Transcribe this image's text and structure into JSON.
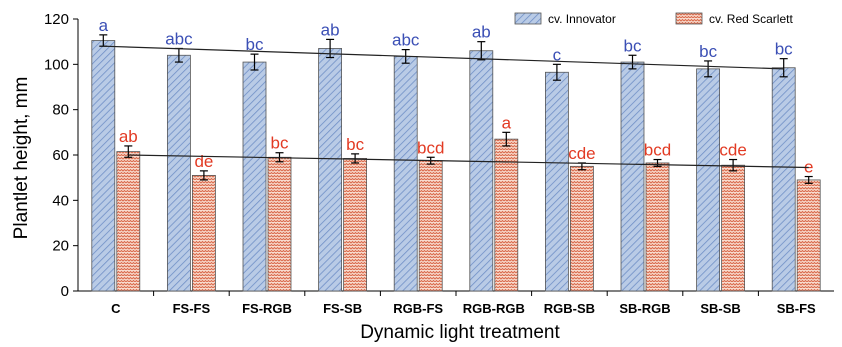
{
  "chart_data": {
    "type": "bar",
    "xlabel": "Dynamic light treatment",
    "ylabel": "Plantlet height, mm",
    "ylim": [
      0,
      120
    ],
    "yticks": [
      0,
      20,
      40,
      60,
      80,
      100,
      120
    ],
    "categories": [
      "C",
      "FS-FS",
      "FS-RGB",
      "FS-SB",
      "RGB-FS",
      "RGB-RGB",
      "RGB-SB",
      "SB-RGB",
      "SB-SB",
      "SB-FS"
    ],
    "legend_position": "top-right",
    "grid": false,
    "series": [
      {
        "name": "cv. Innovator",
        "color": "#a8bedf",
        "label_color": "#3b4fb5",
        "values": [
          110.5,
          104,
          101,
          107,
          103.5,
          106,
          96.5,
          101,
          98,
          98.5
        ],
        "errors": [
          2.5,
          3,
          3.5,
          4,
          3,
          4,
          3.5,
          3,
          3.5,
          4
        ],
        "labels": [
          "a",
          "abc",
          "bc",
          "ab",
          "abc",
          "ab",
          "c",
          "bc",
          "bc",
          "bc"
        ],
        "trend": [
          108,
          98
        ]
      },
      {
        "name": "cv. Red Scarlett",
        "color": "#f4c8b4",
        "label_color": "#e23a23",
        "values": [
          61.5,
          51,
          59,
          58.5,
          57.5,
          67,
          55,
          56.5,
          55.5,
          49
        ],
        "errors": [
          2.5,
          2,
          2,
          2,
          1.5,
          3,
          1.5,
          1.5,
          2.5,
          1.5
        ],
        "labels": [
          "ab",
          "de",
          "bc",
          "bc",
          "bcd",
          "a",
          "cde",
          "bcd",
          "cde",
          "e"
        ],
        "trend": [
          60,
          54.5
        ]
      }
    ]
  }
}
